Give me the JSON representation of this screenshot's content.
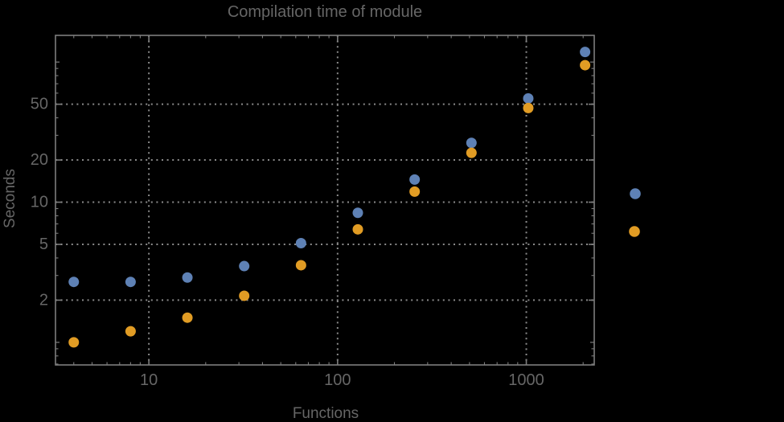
{
  "title": "Compilation time of module",
  "colors": {
    "background": "#000000",
    "text": "#666666",
    "frame": "#7d7d7d",
    "grid": "#8a8a8a",
    "series_blue": "#5e81b5",
    "series_orange": "#e19c24"
  },
  "chart_data": {
    "type": "scatter",
    "title": "Compilation time of module",
    "xlabel": "Functions",
    "ylabel": "Seconds",
    "x_scale": "log",
    "y_scale": "log",
    "grid": "dotted, at labeled major ticks only",
    "xlim": [
      3.2,
      2290
    ],
    "ylim": [
      0.69,
      155
    ],
    "x": [
      4,
      8,
      16,
      32,
      64,
      128,
      256,
      512,
      1024,
      2048
    ],
    "series": [
      {
        "name": "blue",
        "color": "#5e81b5",
        "values": [
          2.7,
          2.7,
          2.9,
          3.5,
          5.1,
          8.4,
          14.5,
          26.5,
          55,
          118
        ]
      },
      {
        "name": "orange",
        "color": "#e19c24",
        "values": [
          1.0,
          1.2,
          1.5,
          2.15,
          3.55,
          6.4,
          11.9,
          22.5,
          47,
          95
        ]
      }
    ],
    "x_ticks": [
      10,
      100,
      1000
    ],
    "x_tick_labels": [
      "10",
      "100",
      "1000"
    ],
    "y_ticks": [
      2,
      5,
      10,
      20,
      50
    ],
    "y_tick_labels": [
      "2",
      "5",
      "10",
      "20",
      "50"
    ],
    "legend_position": "right-of-frame, markers only (no visible text)",
    "legend_markers": [
      {
        "name": "blue",
        "color": "#5e81b5"
      },
      {
        "name": "orange",
        "color": "#e19c24"
      }
    ]
  }
}
